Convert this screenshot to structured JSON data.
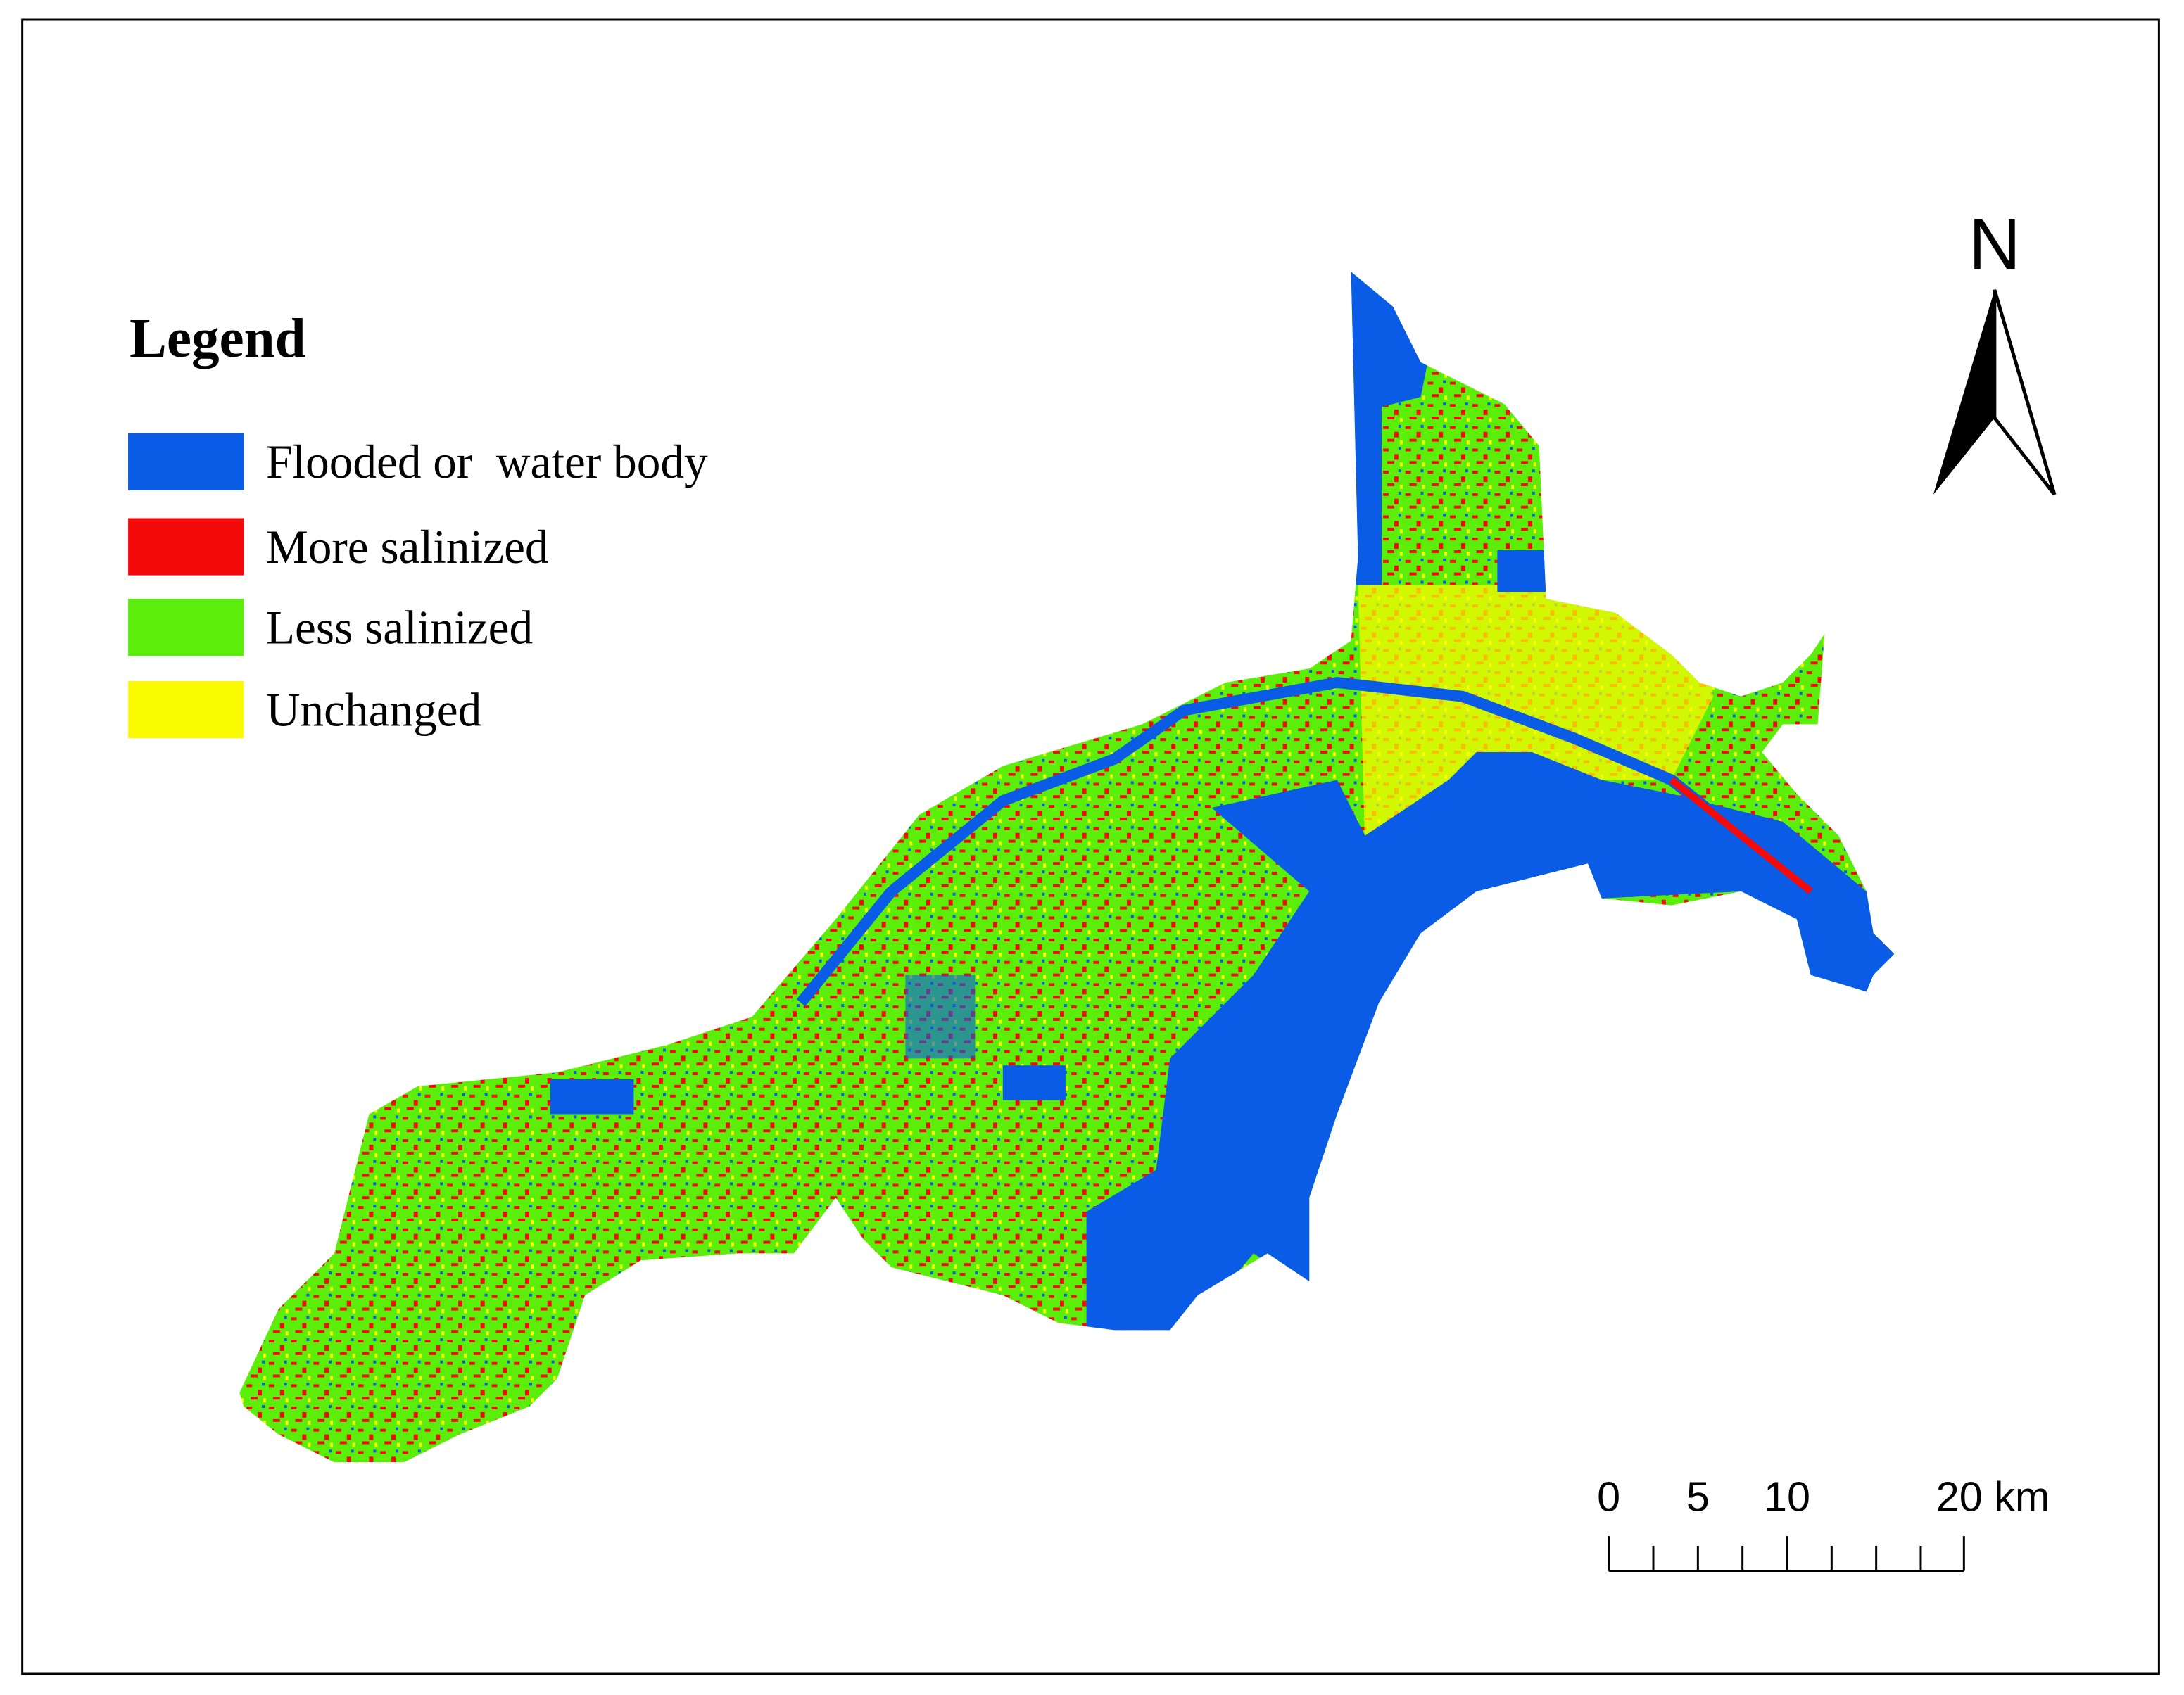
{
  "legend": {
    "title": "Legend",
    "items": [
      {
        "label": "Flooded or  water body",
        "color": "#0a5ce6"
      },
      {
        "label": "More salinized",
        "color": "#f50a0a"
      },
      {
        "label": "Less salinized",
        "color": "#5aee0a"
      },
      {
        "label": "Unchanged",
        "color": "#fafa00"
      }
    ]
  },
  "north_arrow": {
    "label": "N"
  },
  "scale_bar": {
    "labels": [
      "0",
      "5",
      "10",
      "20 km"
    ]
  }
}
